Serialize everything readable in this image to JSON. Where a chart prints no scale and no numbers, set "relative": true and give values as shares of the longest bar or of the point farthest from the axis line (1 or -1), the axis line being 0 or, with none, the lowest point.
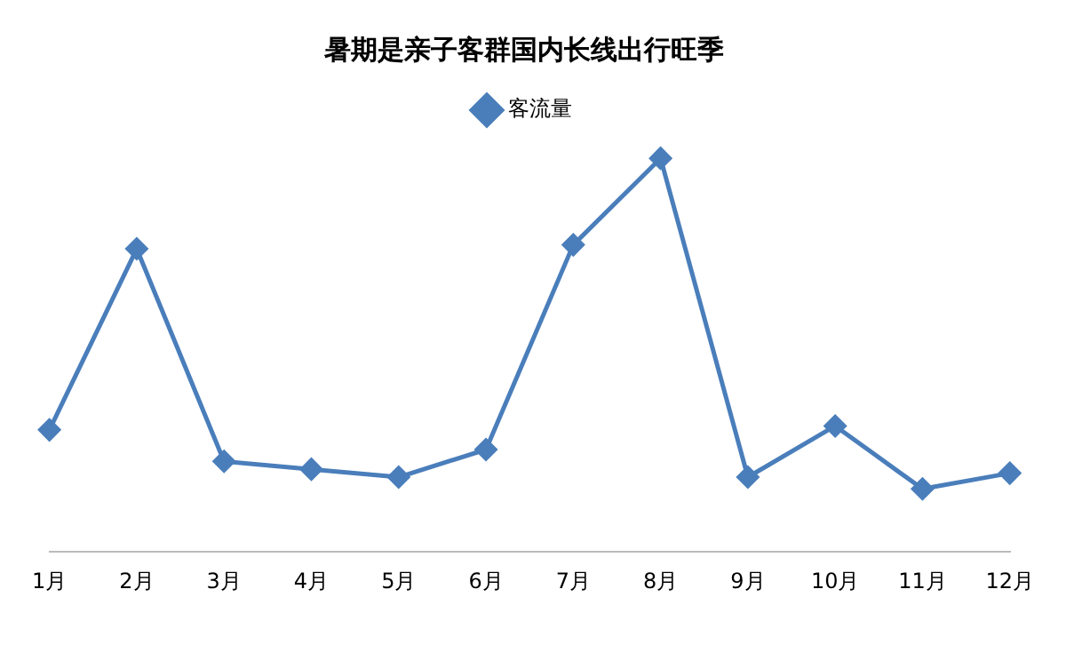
{
  "chart_data": {
    "type": "line",
    "title": "暑期是亲子客群国内长线出行旺季",
    "relative": true,
    "categories": [
      "1月",
      "2月",
      "3月",
      "4月",
      "5月",
      "6月",
      "7月",
      "8月",
      "9月",
      "10月",
      "11月",
      "12月"
    ],
    "series": [
      {
        "name": "客流量",
        "color": "#4a7ebb",
        "values": [
          0.31,
          0.77,
          0.23,
          0.21,
          0.19,
          0.26,
          0.78,
          1,
          0.19,
          0.32,
          0.16,
          0.2
        ]
      }
    ],
    "legend": "top",
    "marker": "diamond",
    "line_style": "solid",
    "grid": false
  }
}
